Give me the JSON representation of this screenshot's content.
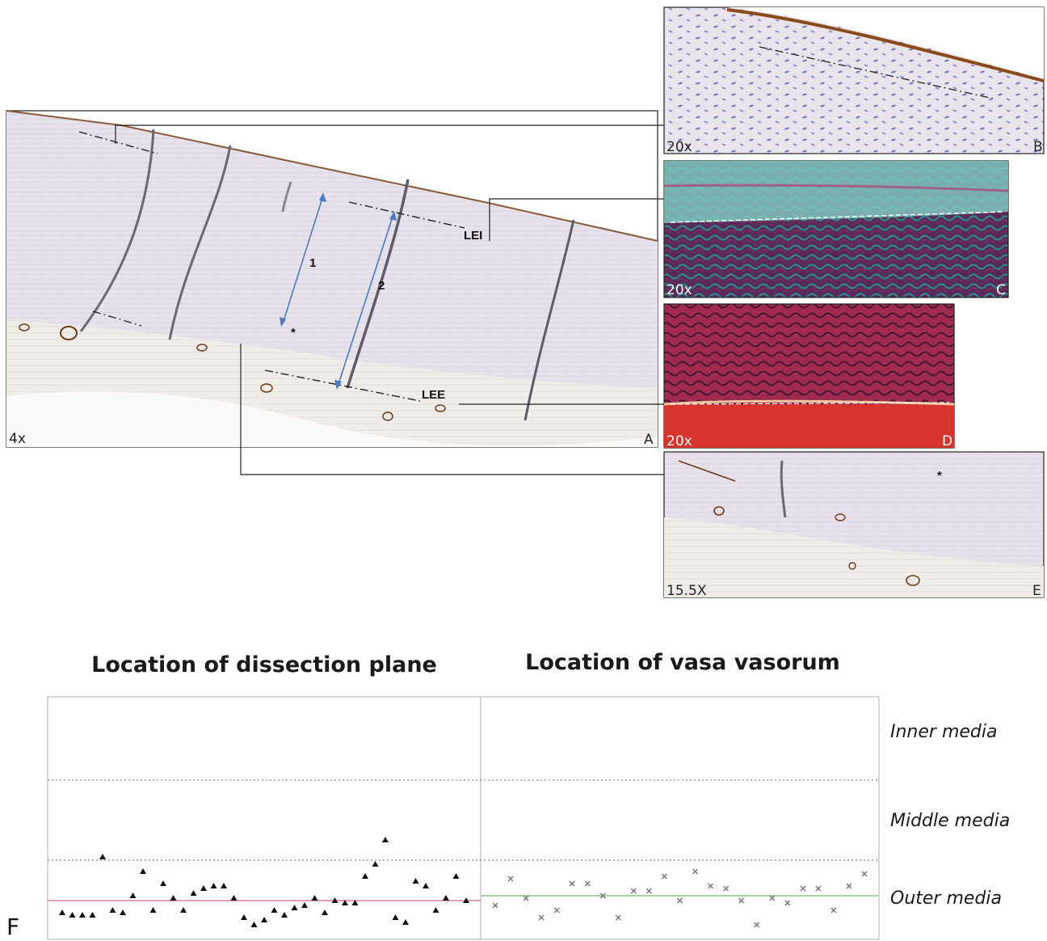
{
  "panels": {
    "A": {
      "letter": "A",
      "magnification": "4x"
    },
    "B": {
      "letter": "B",
      "magnification": "20x"
    },
    "C": {
      "letter": "C",
      "magnification": "20x"
    },
    "D": {
      "letter": "D",
      "magnification": "20x"
    },
    "E": {
      "letter": "E",
      "magnification": "15.5X"
    }
  },
  "annotations": {
    "arrow1": "1",
    "arrow2": "2",
    "asterisk": "*",
    "lei": "LEI",
    "lee": "LEE"
  },
  "figure_letter": "F",
  "colors": {
    "dissection_line": "#e9a0b0",
    "vasa_line": "#a6d5a0",
    "triangle": "#111111",
    "cross": "#777777",
    "band_divider": "#888888"
  },
  "chart_data": [
    {
      "type": "scatter",
      "title": "Location of dissection plane",
      "marker": "triangle",
      "band_labels": [
        "Inner media",
        "Middle media",
        "Outer media"
      ],
      "reference_line": 0.16,
      "y_scale": "relative depth, 0 = outer edge, 1 = inner edge",
      "points": [
        [
          1,
          0.11
        ],
        [
          2,
          0.1
        ],
        [
          3,
          0.1
        ],
        [
          4,
          0.1
        ],
        [
          5,
          0.34
        ],
        [
          6,
          0.12
        ],
        [
          7,
          0.11
        ],
        [
          8,
          0.18
        ],
        [
          9,
          0.28
        ],
        [
          10,
          0.12
        ],
        [
          11,
          0.23
        ],
        [
          12,
          0.17
        ],
        [
          13,
          0.12
        ],
        [
          14,
          0.19
        ],
        [
          15,
          0.21
        ],
        [
          16,
          0.22
        ],
        [
          17,
          0.22
        ],
        [
          18,
          0.17
        ],
        [
          19,
          0.09
        ],
        [
          20,
          0.06
        ],
        [
          21,
          0.08
        ],
        [
          22,
          0.12
        ],
        [
          23,
          0.1
        ],
        [
          24,
          0.13
        ],
        [
          25,
          0.14
        ],
        [
          26,
          0.17
        ],
        [
          27,
          0.11
        ],
        [
          28,
          0.16
        ],
        [
          29,
          0.15
        ],
        [
          30,
          0.15
        ],
        [
          31,
          0.26
        ],
        [
          32,
          0.31
        ],
        [
          33,
          0.41
        ],
        [
          34,
          0.09
        ],
        [
          35,
          0.07
        ],
        [
          36,
          0.24
        ],
        [
          37,
          0.22
        ],
        [
          38,
          0.12
        ],
        [
          39,
          0.17
        ],
        [
          40,
          0.26
        ],
        [
          41,
          0.16
        ]
      ]
    },
    {
      "type": "scatter",
      "title": "Location of vasa vasorum",
      "marker": "cross",
      "band_labels": [
        "Inner media",
        "Middle media",
        "Outer media"
      ],
      "reference_line": 0.18,
      "y_scale": "relative depth, 0 = outer edge, 1 = inner edge",
      "points": [
        [
          1,
          0.14
        ],
        [
          2,
          0.25
        ],
        [
          3,
          0.17
        ],
        [
          4,
          0.09
        ],
        [
          5,
          0.12
        ],
        [
          6,
          0.23
        ],
        [
          7,
          0.23
        ],
        [
          8,
          0.18
        ],
        [
          9,
          0.09
        ],
        [
          10,
          0.2
        ],
        [
          11,
          0.2
        ],
        [
          12,
          0.26
        ],
        [
          13,
          0.16
        ],
        [
          14,
          0.28
        ],
        [
          15,
          0.22
        ],
        [
          16,
          0.21
        ],
        [
          17,
          0.16
        ],
        [
          18,
          0.06
        ],
        [
          19,
          0.17
        ],
        [
          20,
          0.15
        ],
        [
          21,
          0.21
        ],
        [
          22,
          0.21
        ],
        [
          23,
          0.12
        ],
        [
          24,
          0.22
        ],
        [
          25,
          0.27
        ]
      ]
    }
  ]
}
